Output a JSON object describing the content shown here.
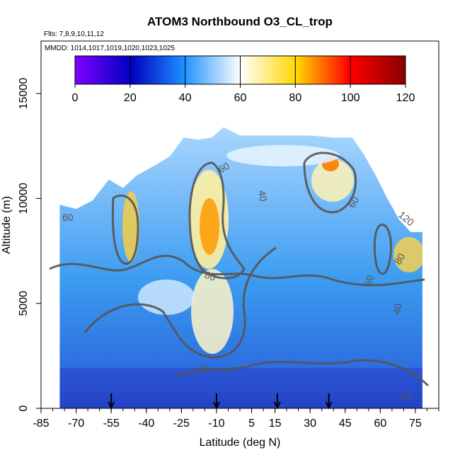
{
  "chart_data": {
    "type": "heatmap",
    "title": "ATOM3 Northbound O3_CL_trop",
    "annotations": [
      "Flts: 7,8,9,10,11,12",
      "MMDD: 1014,1017,1019,1020,1023,1025"
    ],
    "xlabel": "Latitude (deg N)",
    "ylabel": "Altitude (m)",
    "xlim": [
      -85,
      85
    ],
    "ylim": [
      0,
      17500
    ],
    "x_ticks": [
      "-85",
      "-70",
      "-55",
      "-40",
      "-25",
      "-10",
      "5",
      "15",
      "30",
      "45",
      "60",
      "75"
    ],
    "y_ticks": [
      "0",
      "5000",
      "10000",
      "15000"
    ],
    "colorbar": {
      "min": 0,
      "max": 120,
      "ticks": [
        "0",
        "20",
        "40",
        "60",
        "80",
        "100",
        "120"
      ],
      "colors": [
        "#7f00ff",
        "#0000c0",
        "#1e90ff",
        "#ffffff",
        "#ffd700",
        "#ff0000",
        "#8b0000"
      ]
    },
    "contour_labels": [
      "40",
      "40",
      "40",
      "40",
      "60",
      "60",
      "60",
      "60",
      "80",
      "80",
      "120"
    ],
    "flight_marker_latitudes": [
      -55,
      -10,
      16,
      38
    ],
    "ceiling_profile": [
      {
        "lat": -77,
        "alt": 9700
      },
      {
        "lat": -70,
        "alt": 9500
      },
      {
        "lat": -63,
        "alt": 9900
      },
      {
        "lat": -56,
        "alt": 10900
      },
      {
        "lat": -50,
        "alt": 10500
      },
      {
        "lat": -44,
        "alt": 11100
      },
      {
        "lat": -36,
        "alt": 11600
      },
      {
        "lat": -30,
        "alt": 12000
      },
      {
        "lat": -24,
        "alt": 12900
      },
      {
        "lat": -18,
        "alt": 12800
      },
      {
        "lat": -12,
        "alt": 12900
      },
      {
        "lat": -7,
        "alt": 13400
      },
      {
        "lat": 0,
        "alt": 13000
      },
      {
        "lat": 10,
        "alt": 13000
      },
      {
        "lat": 20,
        "alt": 13000
      },
      {
        "lat": 30,
        "alt": 13000
      },
      {
        "lat": 40,
        "alt": 12900
      },
      {
        "lat": 48,
        "alt": 12900
      },
      {
        "lat": 53,
        "alt": 12100
      },
      {
        "lat": 58,
        "alt": 11100
      },
      {
        "lat": 63,
        "alt": 10000
      },
      {
        "lat": 68,
        "alt": 9000
      },
      {
        "lat": 73,
        "alt": 8400
      },
      {
        "lat": 78,
        "alt": 8400
      }
    ]
  }
}
